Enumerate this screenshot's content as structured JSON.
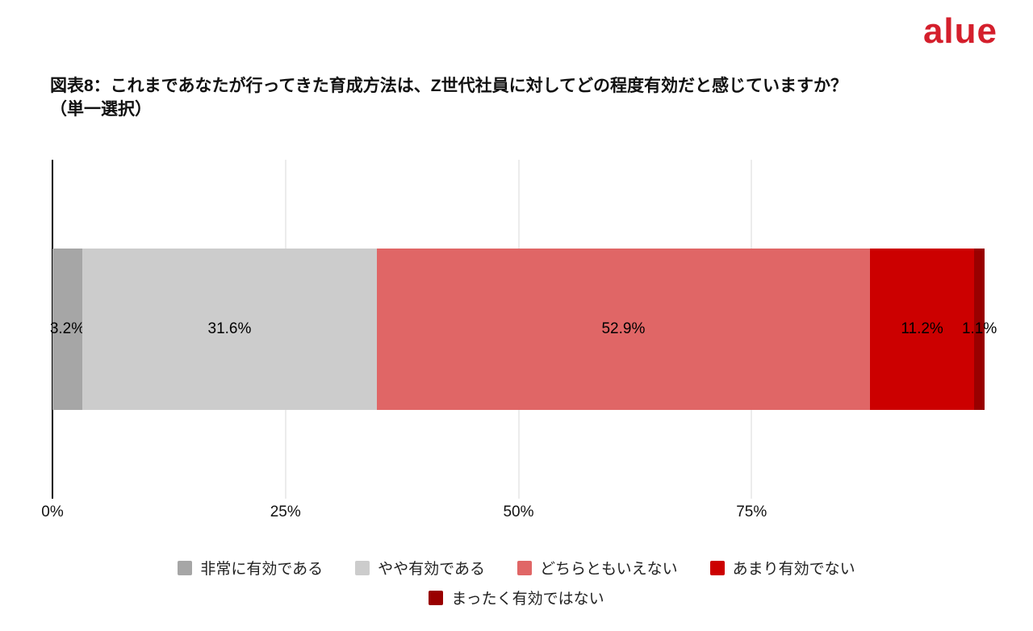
{
  "logo": {
    "text": "alue",
    "color": "#d41f2c"
  },
  "title": {
    "line1": "図表8：これまであなたが行ってきた育成方法は、Z世代社員に対してどの程度有効だと感じていますか？",
    "line2": "（単一選択）"
  },
  "chart_data": {
    "type": "bar",
    "orientation": "horizontal-stacked",
    "title": "図表8：これまであなたが行ってきた育成方法は、Z世代社員に対してどの程度有効だと感じていますか？（単一選択）",
    "series": [
      {
        "name": "非常に有効である",
        "value": 3.2,
        "label": "3.2%",
        "color": "#a6a6a6"
      },
      {
        "name": "やや有効である",
        "value": 31.6,
        "label": "31.6%",
        "color": "#cccccc"
      },
      {
        "name": "どちらともいえない",
        "value": 52.9,
        "label": "52.9%",
        "color": "#e06666"
      },
      {
        "name": "あまり有効でない",
        "value": 11.2,
        "label": "11.2%",
        "color": "#cc0000"
      },
      {
        "name": "まったく有効ではない",
        "value": 1.1,
        "label": "1.1%",
        "color": "#990000"
      }
    ],
    "x_axis": {
      "ticks": [
        "0%",
        "25%",
        "50%",
        "75%"
      ],
      "tick_values": [
        0,
        25,
        50,
        75
      ],
      "range": [
        0,
        100
      ]
    },
    "grid": true,
    "legend_position": "bottom"
  }
}
